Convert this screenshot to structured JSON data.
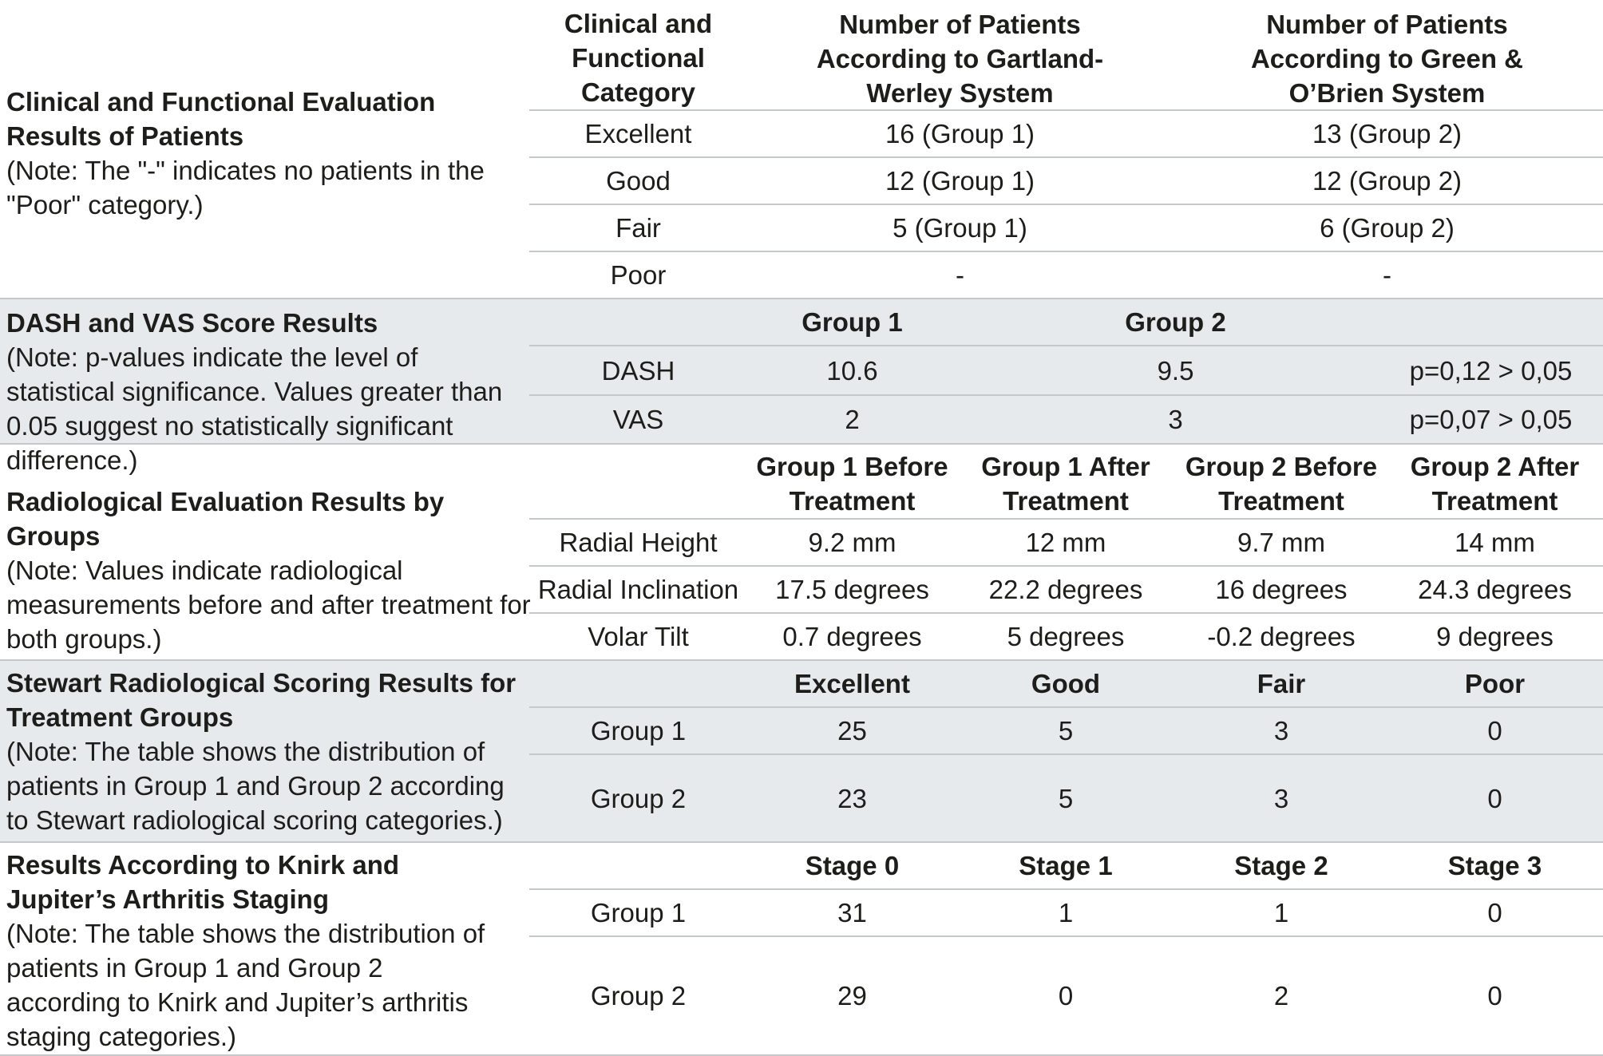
{
  "sections": {
    "clinical": {
      "title": "Clinical and Functional Evaluation Results of Patients",
      "note": "(Note: The \"-\" indicates no patients in the \"Poor\" category.)",
      "headers": [
        "Clinical and Functional Category",
        "Number of Patients According to Gartland-Werley System",
        "Number of Patients According to Green & O’Brien System"
      ],
      "rows": [
        [
          "Excellent",
          "16 (Group 1)",
          "13 (Group 2)"
        ],
        [
          "Good",
          "12 (Group 1)",
          "12 (Group 2)"
        ],
        [
          "Fair",
          "5 (Group 1)",
          "6 (Group 2)"
        ],
        [
          "Poor",
          "-",
          "-"
        ]
      ]
    },
    "dash": {
      "title": "DASH and VAS Score Results",
      "note": "(Note: p-values indicate the level of statistical significance. Values greater than 0.05 suggest no statistically significant difference.)",
      "headers": [
        "Group 1",
        "Group 2"
      ],
      "rows": [
        [
          "DASH",
          "10.6",
          "9.5",
          "p=0,12 > 0,05"
        ],
        [
          "VAS",
          "2",
          "3",
          "p=0,07 > 0,05"
        ]
      ]
    },
    "radiological": {
      "title": "Radiological Evaluation Results by Groups",
      "note": "(Note: Values indicate radiological measurements before and after treatment for both groups.)",
      "headers": [
        "Group 1 Before Treatment",
        "Group 1 After Treatment",
        "Group 2 Before Treatment",
        "Group 2 After Treatment"
      ],
      "rows": [
        [
          "Radial Height",
          "9.2 mm",
          "12 mm",
          "9.7 mm",
          "14 mm"
        ],
        [
          "Radial Inclination",
          "17.5 degrees",
          "22.2 degrees",
          "16 degrees",
          "24.3 degrees"
        ],
        [
          "Volar Tilt",
          "0.7 degrees",
          "5 degrees",
          "-0.2 degrees",
          "9 degrees"
        ]
      ]
    },
    "stewart": {
      "title": "Stewart Radiological Scoring Results for Treatment Groups",
      "note": "(Note: The table shows the distribution of patients in Group 1 and Group 2 according to Stewart radiological scoring categories.)",
      "headers": [
        "Excellent",
        "Good",
        "Fair",
        "Poor"
      ],
      "rows": [
        [
          "Group 1",
          "25",
          "5",
          "3",
          "0"
        ],
        [
          "Group 2",
          "23",
          "5",
          "3",
          "0"
        ]
      ]
    },
    "knirk": {
      "title": "Results According to Knirk and Jupiter’s Arthritis Staging",
      "note": "(Note: The table shows the distribution of patients in Group 1 and Group 2 according to Knirk and Jupiter’s arthritis staging categories.)",
      "headers": [
        "Stage 0",
        "Stage 1",
        "Stage 2",
        "Stage 3"
      ],
      "rows": [
        [
          "Group 1",
          "31",
          "1",
          "1",
          "0"
        ],
        [
          "Group 2",
          "29",
          "0",
          "2",
          "0"
        ]
      ]
    }
  }
}
